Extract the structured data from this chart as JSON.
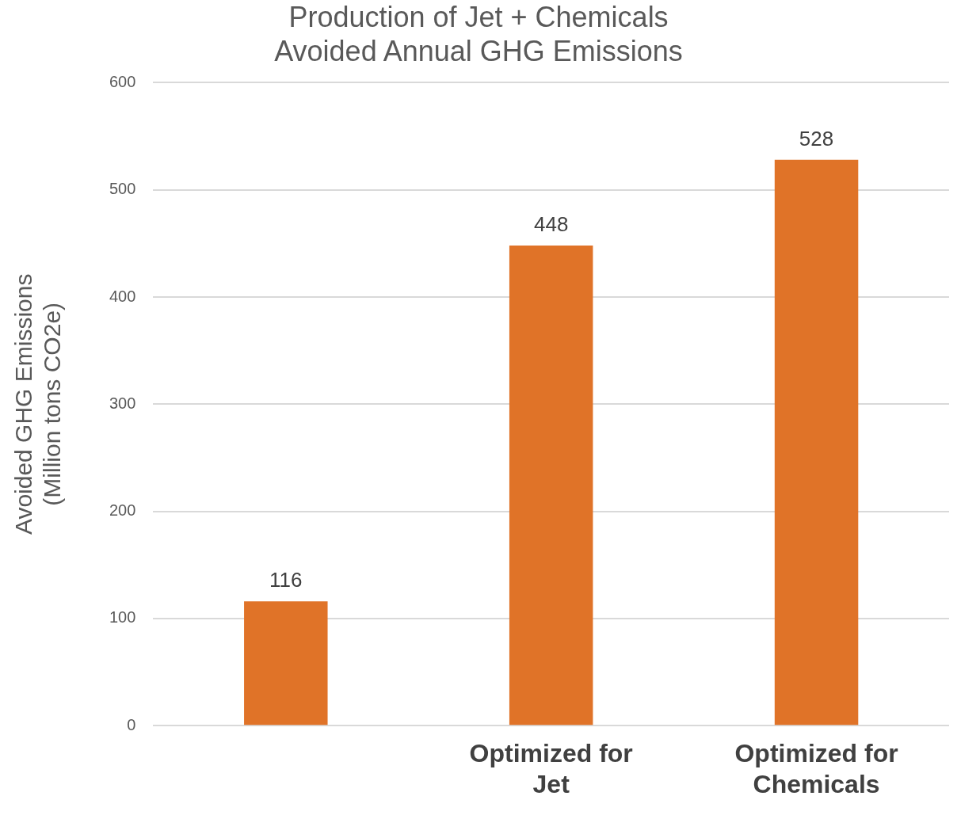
{
  "chart_data": {
    "type": "bar",
    "title": "Production of Jet + Chemicals\nAvoided Annual GHG Emissions",
    "ylabel": "Avoided GHG Emissions\n(Million tons CO2e)",
    "categories": [
      null,
      "Optimized for\nJet",
      "Optimized for\nChemicals"
    ],
    "values": [
      116,
      448,
      528
    ],
    "color": "#e07328",
    "ylim": [
      0,
      600
    ],
    "yticks": [
      0,
      100,
      200,
      300,
      400,
      500,
      600
    ],
    "grid": "y",
    "data_labels": true,
    "legend": false
  }
}
